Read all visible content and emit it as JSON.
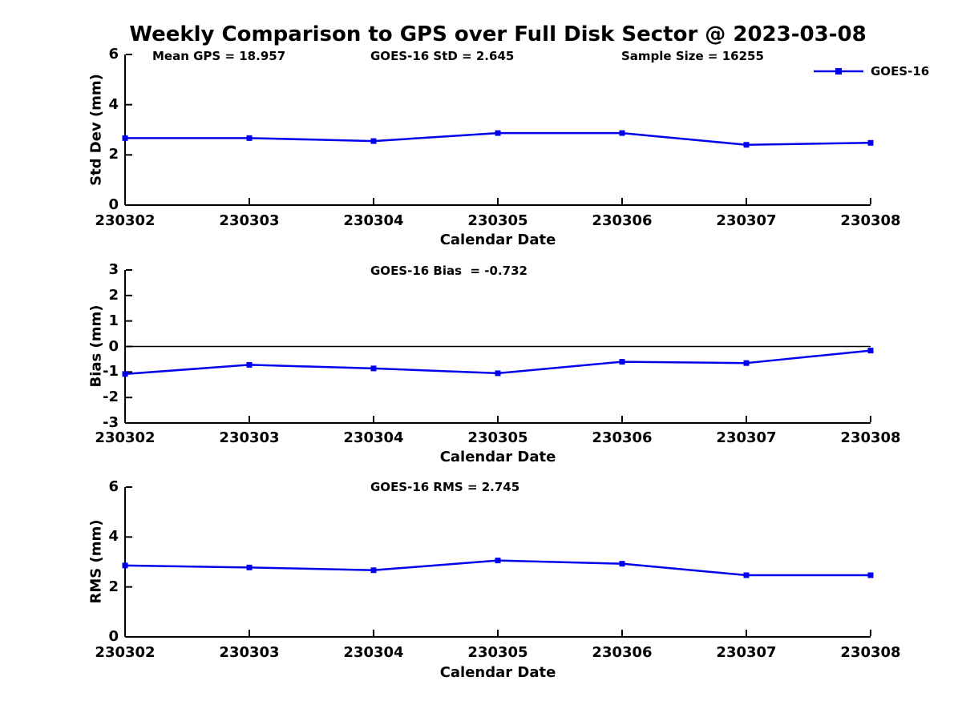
{
  "title": "Weekly Comparison to GPS over Full Disk Sector @ 2023-03-08",
  "legend": {
    "label": "GOES-16"
  },
  "colors": {
    "line": "#0000ee",
    "axis": "#000000",
    "text": "#000000",
    "background": "#ffffff"
  },
  "chart_data": [
    {
      "type": "line",
      "annotations": [
        "Mean GPS = 18.957",
        "GOES-16 StD = 2.645",
        "Sample Size = 16255"
      ],
      "categories": [
        "230302",
        "230303",
        "230304",
        "230305",
        "230306",
        "230307",
        "230308"
      ],
      "series": [
        {
          "name": "GOES-16",
          "values": [
            2.67,
            2.67,
            2.55,
            2.87,
            2.87,
            2.4,
            2.48
          ]
        }
      ],
      "xlabel": "Calendar Date",
      "ylabel": "Std Dev (mm)",
      "ylim": [
        0,
        6
      ],
      "yticks": [
        0,
        2,
        4,
        6
      ],
      "zero_line": false,
      "legend_position": "top-right",
      "grid": false
    },
    {
      "type": "line",
      "annotations": [
        "GOES-16 Bias  = -0.732"
      ],
      "categories": [
        "230302",
        "230303",
        "230304",
        "230305",
        "230306",
        "230307",
        "230308"
      ],
      "series": [
        {
          "name": "GOES-16",
          "values": [
            -1.08,
            -0.72,
            -0.86,
            -1.05,
            -0.6,
            -0.65,
            -0.16
          ]
        }
      ],
      "xlabel": "Calendar Date",
      "ylabel": "Bias (mm)",
      "ylim": [
        -3,
        3
      ],
      "yticks": [
        -3,
        -2,
        -1,
        0,
        1,
        2,
        3
      ],
      "zero_line": true,
      "grid": false
    },
    {
      "type": "line",
      "annotations": [
        "GOES-16 RMS = 2.745"
      ],
      "categories": [
        "230302",
        "230303",
        "230304",
        "230305",
        "230306",
        "230307",
        "230308"
      ],
      "series": [
        {
          "name": "GOES-16",
          "values": [
            2.86,
            2.78,
            2.67,
            3.06,
            2.93,
            2.47,
            2.47
          ]
        }
      ],
      "xlabel": "Calendar Date",
      "ylabel": "RMS (mm)",
      "ylim": [
        0,
        6
      ],
      "yticks": [
        0,
        2,
        4,
        6
      ],
      "zero_line": false,
      "grid": false
    }
  ]
}
